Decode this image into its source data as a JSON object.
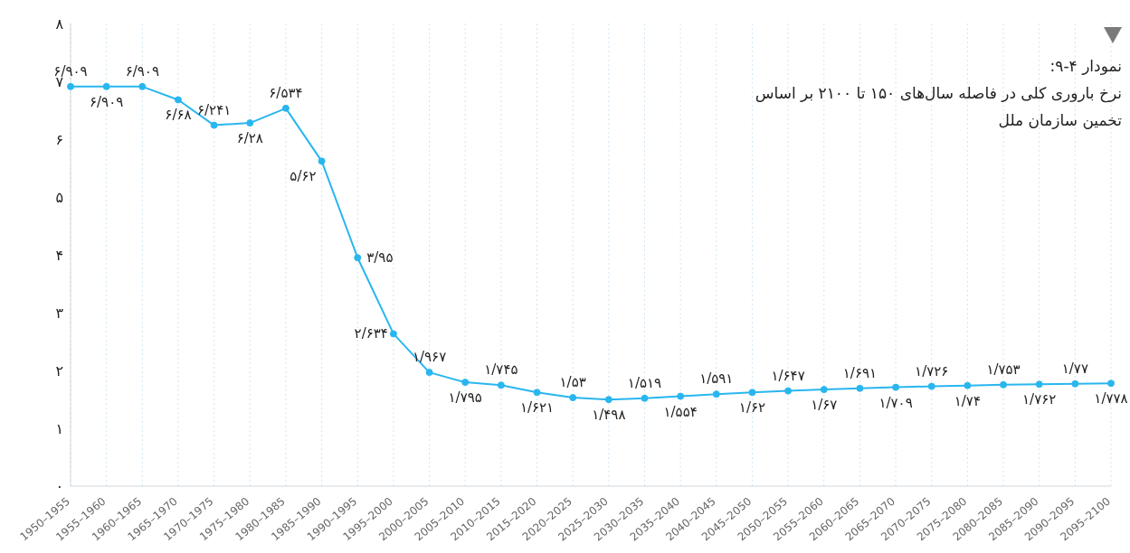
{
  "chart_data": {
    "type": "line",
    "title": "نمودار ۴-۹:",
    "subtitle": "نرخ باروری کلی در فاصله سال‌های ۱۵۰ تا ۲۱۰۰ بر اساس تخمین سازمان ملل",
    "categories": [
      "1950–1955",
      "1955–1960",
      "1960–1965",
      "1965–1970",
      "1970–1975",
      "1975–1980",
      "1980–1985",
      "1985–1990",
      "1990–1995",
      "1995–2000",
      "2000–2005",
      "2005–2010",
      "2010–2015",
      "2015–2020",
      "2020–2025",
      "2025–2030",
      "2030–2035",
      "2035–2040",
      "2040–2045",
      "2045–2050",
      "2050–2055",
      "2055–2060",
      "2060–2065",
      "2065–2070",
      "2070–2075",
      "2075–2080",
      "2080–2085",
      "2085–2090",
      "2090–2095",
      "2095–2100"
    ],
    "series": [
      {
        "color": "#29b6ef",
        "values": [
          6.909,
          6.909,
          6.909,
          6.68,
          6.241,
          6.28,
          6.534,
          5.62,
          3.95,
          2.634,
          1.967,
          1.795,
          1.745,
          1.621,
          1.53,
          1.498,
          1.519,
          1.554,
          1.591,
          1.62,
          1.647,
          1.67,
          1.691,
          1.709,
          1.726,
          1.74,
          1.753,
          1.762,
          1.77,
          1.778
        ],
        "value_labels": [
          "۶/۹۰۹",
          "۶/۹۰۹",
          "۶/۹۰۹",
          "۶/۶۸",
          "۶/۲۴۱",
          "۶/۲۸",
          "۶/۵۳۴",
          "۵/۶۲",
          "۳/۹۵",
          "۲/۶۳۴",
          "۱/۹۶۷",
          "۱/۷۹۵",
          "۱/۷۴۵",
          "۱/۶۲۱",
          "۱/۵۳",
          "۱/۴۹۸",
          "۱/۵۱۹",
          "۱/۵۵۴",
          "۱/۵۹۱",
          "۱/۶۲",
          "۱/۶۴۷",
          "۱/۶۷",
          "۱/۶۹۱",
          "۱/۷۰۹",
          "۱/۷۲۶",
          "۱/۷۴",
          "۱/۷۵۳",
          "۱/۷۶۲",
          "۱/۷۷",
          "۱/۷۷۸"
        ]
      }
    ],
    "ylim": [
      0,
      8
    ],
    "yticks": [
      {
        "value": 0,
        "label": "۰"
      },
      {
        "value": 1,
        "label": "۱"
      },
      {
        "value": 2,
        "label": "۲"
      },
      {
        "value": 3,
        "label": "۳"
      },
      {
        "value": 4,
        "label": "۴"
      },
      {
        "value": 5,
        "label": "۵"
      },
      {
        "value": 6,
        "label": "۶"
      },
      {
        "value": 7,
        "label": "۷"
      },
      {
        "value": 8,
        "label": "۸"
      }
    ],
    "grid": "x",
    "marker": "circle",
    "line_style": "solid"
  }
}
